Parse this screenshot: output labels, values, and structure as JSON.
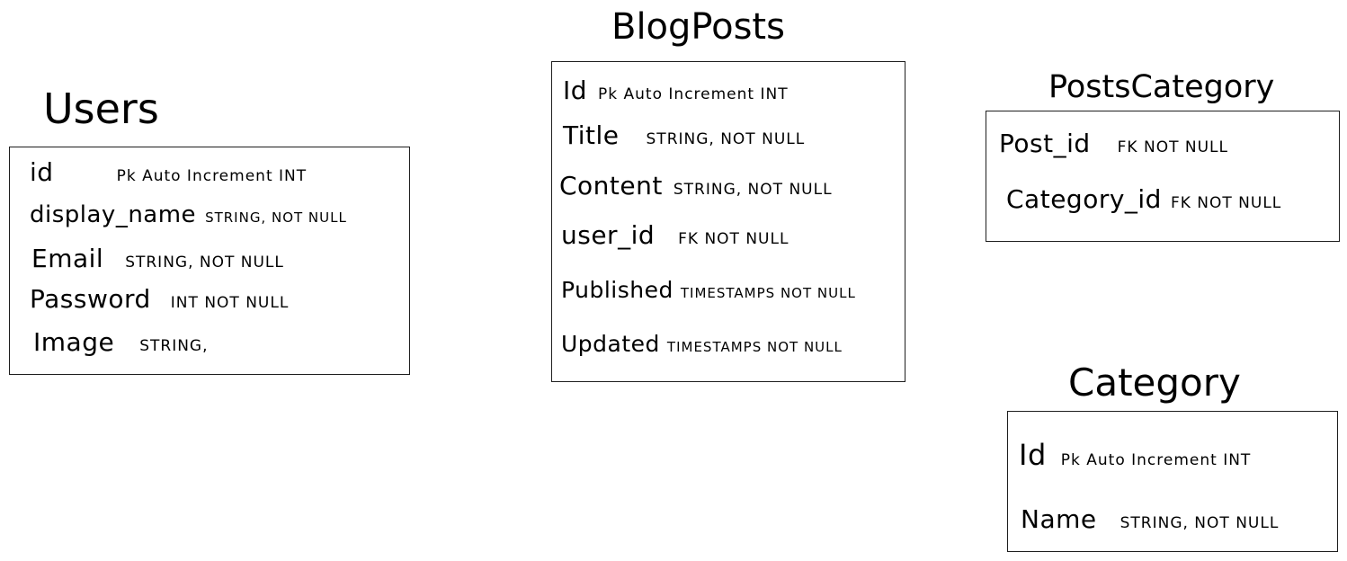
{
  "entities": {
    "users": {
      "title": "Users",
      "fields": [
        {
          "name": "id",
          "type": "Pk Auto Increment INT"
        },
        {
          "name": "display_name",
          "type": "STRING, NOT NULL"
        },
        {
          "name": "Email",
          "type": "STRING, NOT NULL"
        },
        {
          "name": "Password",
          "type": "INT NOT NULL"
        },
        {
          "name": "Image",
          "type": "STRING,"
        }
      ]
    },
    "blogposts": {
      "title": "BlogPosts",
      "fields": [
        {
          "name": "Id",
          "type": "Pk Auto Increment INT"
        },
        {
          "name": "Title",
          "type": "STRING, NOT NULL"
        },
        {
          "name": "Content",
          "type": "STRING, NOT NULL"
        },
        {
          "name": "user_id",
          "type": "FK NOT NULL"
        },
        {
          "name": "Published",
          "type": "TIMESTAMPS NOT NULL"
        },
        {
          "name": "Updated",
          "type": "TIMESTAMPS NOT NULL"
        }
      ]
    },
    "postscategory": {
      "title": "PostsCategory",
      "fields": [
        {
          "name": "Post_id",
          "type": "FK NOT NULL"
        },
        {
          "name": "Category_id",
          "type": "FK NOT NULL"
        }
      ]
    },
    "category": {
      "title": "Category",
      "fields": [
        {
          "name": "Id",
          "type": "Pk Auto Increment INT"
        },
        {
          "name": "Name",
          "type": "STRING, NOT NULL"
        }
      ]
    }
  }
}
